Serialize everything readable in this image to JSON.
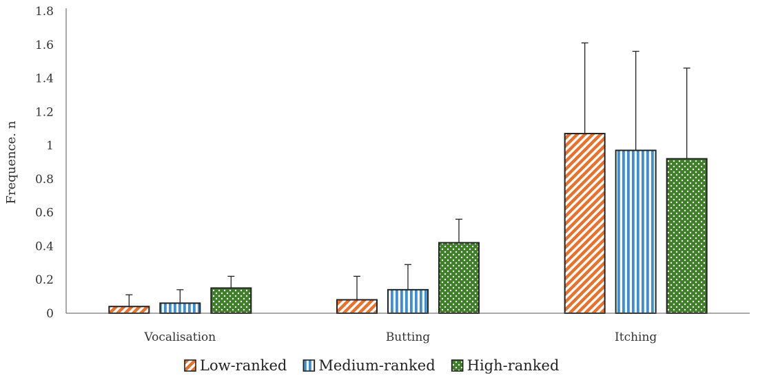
{
  "chart_data": {
    "type": "bar",
    "title": "",
    "xlabel": "",
    "ylabel": "Frequence. n",
    "ylim": [
      0,
      1.8
    ],
    "yticks": [
      "0",
      "0.2",
      "0.4",
      "0.6",
      "0.8",
      "1",
      "1.2",
      "1.4",
      "1.6",
      "1.8"
    ],
    "categories": [
      "Vocalisation",
      "Butting",
      "Itching"
    ],
    "grid": false,
    "legend_position": "bottom",
    "series": [
      {
        "name": "Low-ranked",
        "values": [
          0.04,
          0.08,
          1.07
        ],
        "errors": [
          0.07,
          0.14,
          0.54
        ],
        "color": "#e8722c",
        "pattern": "diagonal-stripes"
      },
      {
        "name": "Medium-ranked",
        "values": [
          0.06,
          0.14,
          0.97
        ],
        "errors": [
          0.08,
          0.15,
          0.59
        ],
        "color": "#3d8fd1",
        "pattern": "vertical-stripes"
      },
      {
        "name": "High-ranked",
        "values": [
          0.15,
          0.42,
          0.92
        ],
        "errors": [
          0.07,
          0.14,
          0.54
        ],
        "color": "#3f7f2a",
        "pattern": "dots"
      }
    ]
  }
}
